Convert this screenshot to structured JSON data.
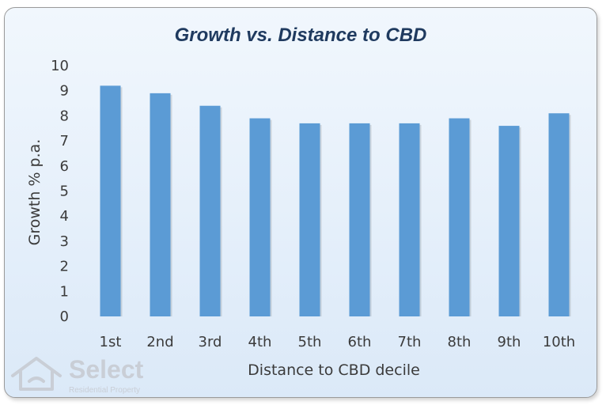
{
  "chart_data": {
    "type": "bar",
    "title": "Growth vs. Distance to CBD",
    "xlabel": "Distance to CBD decile",
    "ylabel": "Growth % p.a.",
    "categories": [
      "1st",
      "2nd",
      "3rd",
      "4th",
      "5th",
      "6th",
      "7th",
      "8th",
      "9th",
      "10th"
    ],
    "values": [
      9.2,
      8.9,
      8.4,
      7.9,
      7.7,
      7.7,
      7.7,
      7.9,
      7.6,
      8.1
    ],
    "ylim": [
      0,
      10
    ],
    "yticks": [
      0,
      1,
      2,
      3,
      4,
      5,
      6,
      7,
      8,
      9,
      10
    ],
    "grid": false,
    "legend": "none",
    "bar_color": "#5b9bd5"
  },
  "logo": {
    "name": "Select",
    "tagline": "Residential Property",
    "icon": "house-icon"
  }
}
